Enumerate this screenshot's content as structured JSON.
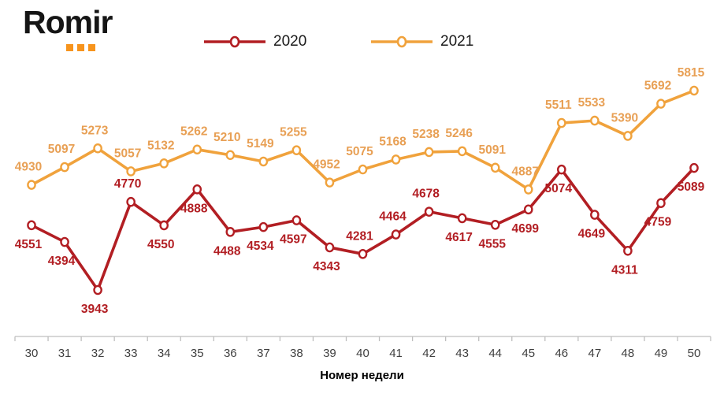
{
  "logo": {
    "text": "Romir",
    "dots_color": "#F7941D"
  },
  "legend": [
    {
      "label": "2020",
      "color": "#B21E23"
    },
    {
      "label": "2021",
      "color": "#F0A23C"
    }
  ],
  "chart_data": {
    "type": "line",
    "title": "",
    "xlabel": "Номер недели",
    "ylabel": "",
    "x": [
      30,
      31,
      32,
      33,
      34,
      35,
      36,
      37,
      38,
      39,
      40,
      41,
      42,
      43,
      44,
      45,
      46,
      47,
      48,
      49,
      50
    ],
    "ylim": [
      3943,
      5815
    ],
    "grid": false,
    "legend_position": "top",
    "axis_color": "#BFBFBF",
    "tick_label_color": "#3F3F3F",
    "series": [
      {
        "name": "2020",
        "color": "#B21E23",
        "label_color": "#B21E23",
        "values": [
          4551,
          4394,
          3943,
          4770,
          4550,
          4888,
          4488,
          4534,
          4597,
          4343,
          4281,
          4464,
          4678,
          4617,
          4555,
          4699,
          5074,
          4649,
          4311,
          4759,
          5089
        ],
        "label_pos": [
          "below",
          "below",
          "below",
          "above",
          "below",
          "below",
          "below",
          "below",
          "below",
          "below",
          "above",
          "above",
          "above",
          "below",
          "below",
          "below",
          "below",
          "below",
          "below",
          "below",
          "below"
        ]
      },
      {
        "name": "2021",
        "color": "#F0A23C",
        "label_color": "#E8A055",
        "values": [
          4930,
          5097,
          5273,
          5057,
          5132,
          5262,
          5210,
          5149,
          5255,
          4952,
          5075,
          5168,
          5238,
          5246,
          5091,
          4887,
          5511,
          5533,
          5390,
          5692,
          5815
        ],
        "label_pos": [
          "above",
          "above",
          "above",
          "above",
          "above",
          "above",
          "above",
          "above",
          "above",
          "above",
          "above",
          "above",
          "above",
          "above",
          "above",
          "above",
          "above",
          "above",
          "above",
          "above",
          "above"
        ]
      }
    ]
  }
}
